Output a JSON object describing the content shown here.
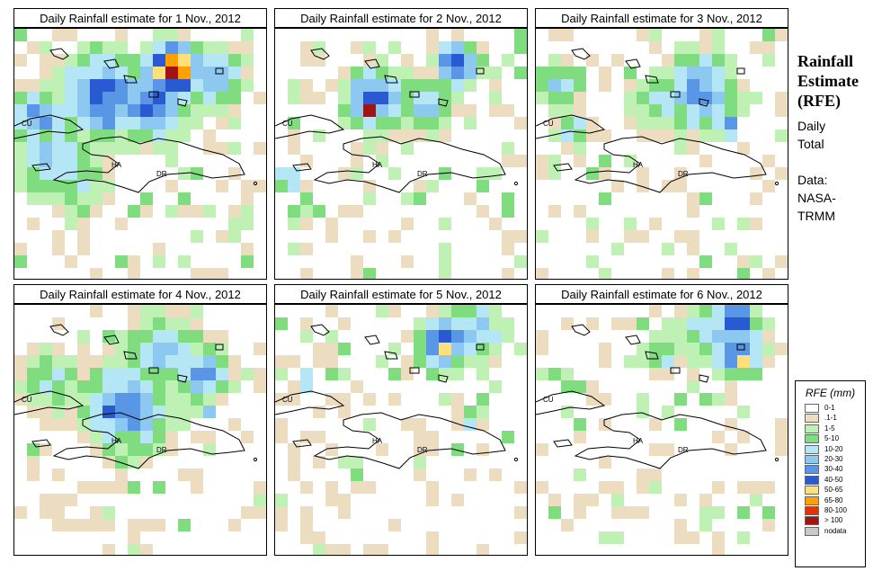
{
  "panels": [
    {
      "title": "Daily Rainfall estimate for  1 Nov., 2012"
    },
    {
      "title": "Daily Rainfall estimate for  2 Nov., 2012"
    },
    {
      "title": "Daily Rainfall estimate for  3 Nov., 2012"
    },
    {
      "title": "Daily Rainfall estimate for  4 Nov., 2012"
    },
    {
      "title": "Daily Rainfall estimate for  5 Nov., 2012"
    },
    {
      "title": "Daily Rainfall estimate for  6 Nov., 2012"
    }
  ],
  "map_labels": {
    "cuba": "CU",
    "haiti": "HA",
    "dominican_republic": "DR"
  },
  "side_panel": {
    "title_line1": "Rainfall",
    "title_line2": "Estimate",
    "title_line3": "(RFE)",
    "period_line1": "Daily",
    "period_line2": "Total",
    "source_line1": "Data:",
    "source_line2": "NASA-",
    "source_line3": "TRMM"
  },
  "legend": {
    "title": "RFE (mm)",
    "classes": [
      {
        "label": "0-1",
        "color": "#ffffff"
      },
      {
        "label": ".1-1",
        "color": "#ecdcc0"
      },
      {
        "label": "1-5",
        "color": "#bff0b4"
      },
      {
        "label": "5-10",
        "color": "#7fdc7f"
      },
      {
        "label": "10-20",
        "color": "#b4e6f5"
      },
      {
        "label": "20-30",
        "color": "#8cc8f0"
      },
      {
        "label": "30-40",
        "color": "#5a96e6"
      },
      {
        "label": "40-50",
        "color": "#2a5ad2"
      },
      {
        "label": "50-65",
        "color": "#ffe07a"
      },
      {
        "label": "65-80",
        "color": "#ffa000"
      },
      {
        "label": "80-100",
        "color": "#e63200"
      },
      {
        "label": "> 100",
        "color": "#a01414"
      },
      {
        "label": "nodata",
        "color": "#c8c8c8"
      }
    ]
  }
}
